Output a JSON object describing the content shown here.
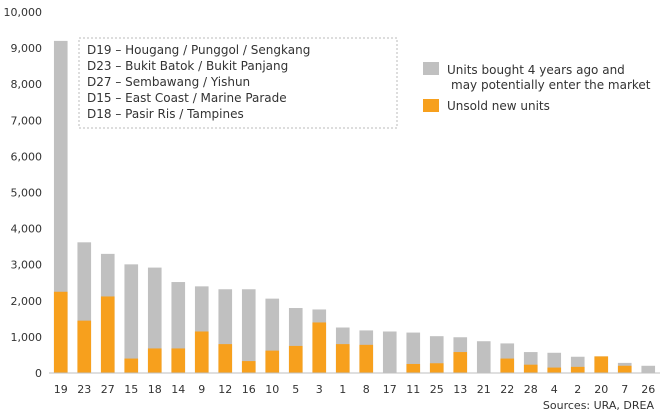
{
  "chart_data": {
    "type": "bar",
    "stacking": "overlay",
    "categories": [
      "19",
      "23",
      "27",
      "15",
      "18",
      "14",
      "9",
      "12",
      "16",
      "10",
      "5",
      "3",
      "1",
      "8",
      "17",
      "11",
      "25",
      "13",
      "21",
      "22",
      "28",
      "4",
      "2",
      "20",
      "7",
      "26"
    ],
    "series": [
      {
        "name": "Units bought 4 years ago and may potentially enter the market",
        "name_lines": [
          "Units bought 4 years ago and",
          "may potentially enter the market"
        ],
        "color": "#c0c0c0",
        "values": [
          9200,
          3620,
          3300,
          3010,
          2920,
          2520,
          2400,
          2320,
          2320,
          2060,
          1800,
          1760,
          1260,
          1180,
          1150,
          1120,
          1020,
          990,
          880,
          820,
          580,
          560,
          450,
          460,
          280,
          200
        ]
      },
      {
        "name": "Unsold new units",
        "color": "#f7a01d",
        "values": [
          2250,
          1450,
          2120,
          400,
          680,
          680,
          1150,
          800,
          330,
          620,
          750,
          1400,
          800,
          780,
          0,
          250,
          270,
          580,
          0,
          400,
          230,
          150,
          170,
          460,
          200,
          0
        ]
      }
    ],
    "ylim": [
      0,
      10000
    ],
    "yticks": [
      0,
      1000,
      2000,
      3000,
      4000,
      5000,
      6000,
      7000,
      8000,
      9000,
      10000
    ],
    "ytick_labels": [
      "0",
      "1,000",
      "2,000",
      "3,000",
      "4,000",
      "5,000",
      "6,000",
      "7,000",
      "8,000",
      "9,000",
      "10,000"
    ],
    "legend_position": "right",
    "grid": false,
    "annotation_lines": [
      "D19 – Hougang / Punggol / Sengkang",
      "D23 – Bukit Batok / Bukit Panjang",
      "D27 – Sembawang / Yishun",
      "D15 – East Coast / Marine Parade",
      "D18 – Pasir Ris / Tampines"
    ],
    "source": "Sources: URA, DREA"
  }
}
